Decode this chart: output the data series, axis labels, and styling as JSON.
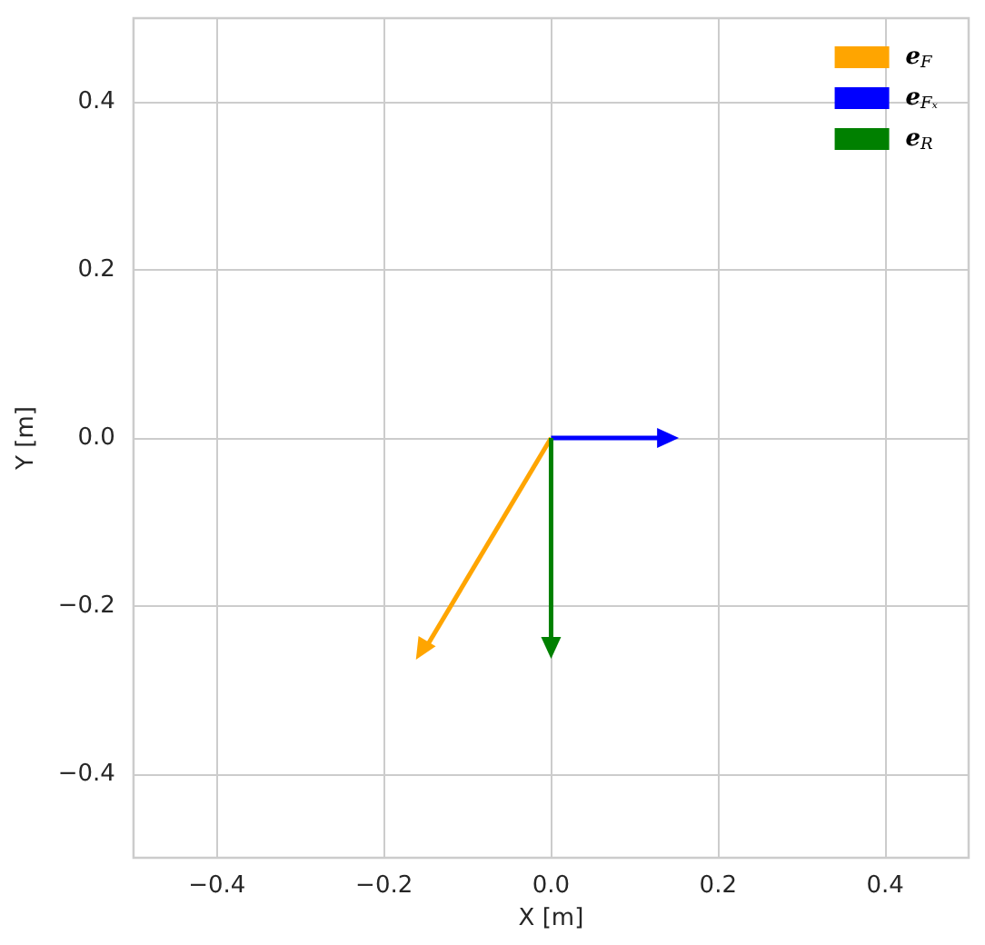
{
  "chart_data": {
    "type": "line",
    "xlabel": "X [m]",
    "ylabel": "Y [m]",
    "xlim": [
      -0.5,
      0.5
    ],
    "ylim": [
      -0.5,
      0.5
    ],
    "xticks": [
      {
        "value": -0.4,
        "label": "−0.4"
      },
      {
        "value": -0.2,
        "label": "−0.2"
      },
      {
        "value": 0,
        "label": "0.0"
      },
      0.2,
      0.4
    ],
    "yticks": [
      {
        "value": -0.4,
        "label": "−0.4"
      },
      {
        "value": -0.2,
        "label": "−0.2"
      },
      {
        "value": 0,
        "label": "0.0"
      },
      0.2,
      0.4
    ],
    "grid": true,
    "legend": "top right",
    "series": [
      {
        "name": "e$_{F}$",
        "color": "#ffa500",
        "x": [
          0,
          -0.15
        ],
        "values": [
          0,
          -0.25
        ]
      },
      {
        "name": "e$_{Fₓ}$",
        "color": "#0000ff",
        "x": [
          0,
          0.14
        ],
        "values": [
          0,
          0
        ]
      },
      {
        "name": "e$_{R}$",
        "color": "#008000",
        "x": [
          0,
          0
        ],
        "values": [
          0,
          -0.25
        ]
      }
    ]
  }
}
